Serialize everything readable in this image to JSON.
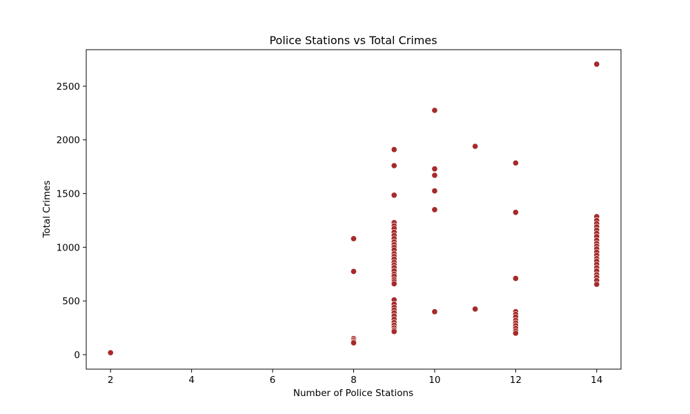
{
  "chart_data": {
    "type": "scatter",
    "title": "Police Stations vs Total Crimes",
    "xlabel": "Number of Police Stations",
    "ylabel": "Total Crimes",
    "xlim": [
      1.4,
      14.6
    ],
    "ylim": [
      -135,
      2840
    ],
    "xticks": [
      2,
      4,
      6,
      8,
      10,
      12,
      14
    ],
    "yticks": [
      0,
      500,
      1000,
      1500,
      2000,
      2500
    ],
    "grid": false,
    "legend": "none",
    "marker_color": "#a52a2a",
    "marker_edge_color": "#ffffff",
    "points": [
      {
        "x": 2,
        "y": 18
      },
      {
        "x": 8,
        "y": 1080
      },
      {
        "x": 8,
        "y": 775
      },
      {
        "x": 8,
        "y": 150
      },
      {
        "x": 8,
        "y": 135
      },
      {
        "x": 8,
        "y": 120
      },
      {
        "x": 8,
        "y": 110
      },
      {
        "x": 9,
        "y": 1910
      },
      {
        "x": 9,
        "y": 1760
      },
      {
        "x": 9,
        "y": 1485
      },
      {
        "x": 9,
        "y": 1230
      },
      {
        "x": 9,
        "y": 1200
      },
      {
        "x": 9,
        "y": 1175
      },
      {
        "x": 9,
        "y": 1140
      },
      {
        "x": 9,
        "y": 1110
      },
      {
        "x": 9,
        "y": 1080
      },
      {
        "x": 9,
        "y": 1050
      },
      {
        "x": 9,
        "y": 1025
      },
      {
        "x": 9,
        "y": 1000
      },
      {
        "x": 9,
        "y": 975
      },
      {
        "x": 9,
        "y": 940
      },
      {
        "x": 9,
        "y": 915
      },
      {
        "x": 9,
        "y": 890
      },
      {
        "x": 9,
        "y": 860
      },
      {
        "x": 9,
        "y": 835
      },
      {
        "x": 9,
        "y": 810
      },
      {
        "x": 9,
        "y": 780
      },
      {
        "x": 9,
        "y": 750
      },
      {
        "x": 9,
        "y": 730
      },
      {
        "x": 9,
        "y": 700
      },
      {
        "x": 9,
        "y": 680
      },
      {
        "x": 9,
        "y": 660
      },
      {
        "x": 9,
        "y": 510
      },
      {
        "x": 9,
        "y": 470
      },
      {
        "x": 9,
        "y": 440
      },
      {
        "x": 9,
        "y": 415
      },
      {
        "x": 9,
        "y": 390
      },
      {
        "x": 9,
        "y": 360
      },
      {
        "x": 9,
        "y": 330
      },
      {
        "x": 9,
        "y": 300
      },
      {
        "x": 9,
        "y": 275
      },
      {
        "x": 9,
        "y": 250
      },
      {
        "x": 9,
        "y": 230
      },
      {
        "x": 9,
        "y": 215
      },
      {
        "x": 10,
        "y": 2275
      },
      {
        "x": 10,
        "y": 1730
      },
      {
        "x": 10,
        "y": 1670
      },
      {
        "x": 10,
        "y": 1525
      },
      {
        "x": 10,
        "y": 1350
      },
      {
        "x": 10,
        "y": 400
      },
      {
        "x": 11,
        "y": 1940
      },
      {
        "x": 11,
        "y": 425
      },
      {
        "x": 12,
        "y": 1785
      },
      {
        "x": 12,
        "y": 1325
      },
      {
        "x": 12,
        "y": 710
      },
      {
        "x": 12,
        "y": 400
      },
      {
        "x": 12,
        "y": 375
      },
      {
        "x": 12,
        "y": 350
      },
      {
        "x": 12,
        "y": 320
      },
      {
        "x": 12,
        "y": 295
      },
      {
        "x": 12,
        "y": 270
      },
      {
        "x": 12,
        "y": 245
      },
      {
        "x": 12,
        "y": 220
      },
      {
        "x": 12,
        "y": 200
      },
      {
        "x": 14,
        "y": 2705
      },
      {
        "x": 14,
        "y": 1285
      },
      {
        "x": 14,
        "y": 1250
      },
      {
        "x": 14,
        "y": 1220
      },
      {
        "x": 14,
        "y": 1190
      },
      {
        "x": 14,
        "y": 1160
      },
      {
        "x": 14,
        "y": 1130
      },
      {
        "x": 14,
        "y": 1100
      },
      {
        "x": 14,
        "y": 1065
      },
      {
        "x": 14,
        "y": 1035
      },
      {
        "x": 14,
        "y": 1010
      },
      {
        "x": 14,
        "y": 985
      },
      {
        "x": 14,
        "y": 955
      },
      {
        "x": 14,
        "y": 925
      },
      {
        "x": 14,
        "y": 895
      },
      {
        "x": 14,
        "y": 870
      },
      {
        "x": 14,
        "y": 840
      },
      {
        "x": 14,
        "y": 810
      },
      {
        "x": 14,
        "y": 780
      },
      {
        "x": 14,
        "y": 745
      },
      {
        "x": 14,
        "y": 720
      },
      {
        "x": 14,
        "y": 690
      },
      {
        "x": 14,
        "y": 655
      }
    ]
  }
}
